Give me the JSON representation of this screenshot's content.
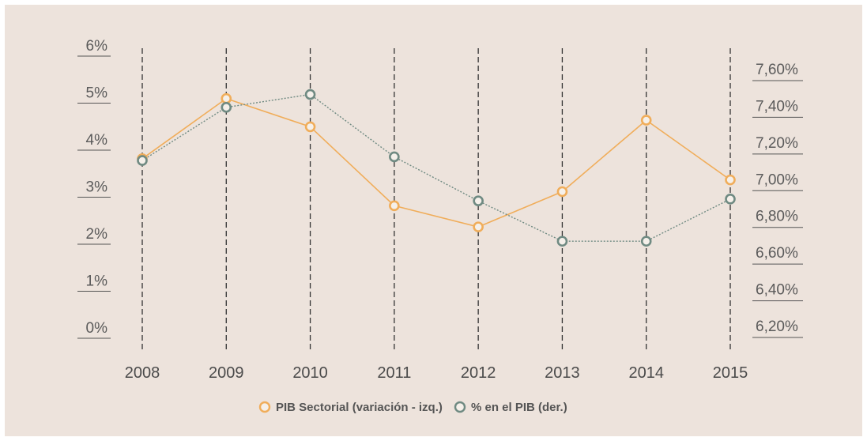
{
  "chart_data": {
    "type": "line",
    "categories": [
      "2008",
      "2009",
      "2010",
      "2011",
      "2012",
      "2013",
      "2014",
      "2015"
    ],
    "left_axis": {
      "ticks": [
        "0%",
        "1%",
        "2%",
        "3%",
        "4%",
        "5%",
        "6%"
      ],
      "range": [
        0,
        6
      ]
    },
    "right_axis": {
      "ticks": [
        "6,20%",
        "6,40%",
        "6,60%",
        "6,80%",
        "7,00%",
        "7,20%",
        "7,40%",
        "7,60%"
      ],
      "range": [
        6.2,
        7.6
      ]
    },
    "series": [
      {
        "name": "PIB Sectorial (variación - izq.)",
        "axis": "left",
        "color": "#f0ad5a",
        "line_style": "solid",
        "values": [
          3.7,
          4.98,
          4.38,
          2.7,
          2.25,
          3.0,
          4.52,
          3.25
        ]
      },
      {
        "name": "% en el PIB (der.)",
        "axis": "right",
        "color": "#6f8a82",
        "line_style": "dotted",
        "values": [
          7.13,
          7.42,
          7.49,
          7.15,
          6.91,
          6.69,
          6.69,
          6.92
        ]
      }
    ],
    "legend_position": "bottom-center",
    "grid": "vertical dashed lines at each year"
  }
}
